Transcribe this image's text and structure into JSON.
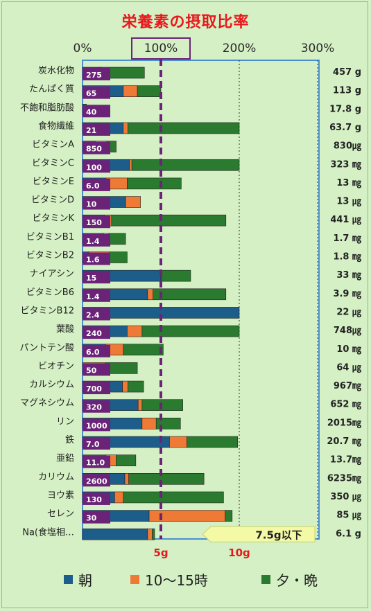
{
  "title": "栄養素の摂取比率",
  "colors": {
    "morning": "#1d5d8a",
    "midday": "#ee7a36",
    "evening": "#2a7a30",
    "required_box": "#6b2378",
    "highlight": "#6b2378",
    "axis_frame": "#4a90d0"
  },
  "legend": [
    {
      "name": "朝",
      "color": "#1d5d8a"
    },
    {
      "name": "10〜15時",
      "color": "#ee7a36"
    },
    {
      "name": "夕・晩",
      "color": "#2a7a30"
    }
  ],
  "chart_data": {
    "type": "bar",
    "stacked": true,
    "orientation": "horizontal",
    "title": "栄養素の摂取比率",
    "x_ticks": [
      "0%",
      "100%",
      "200%",
      "300%"
    ],
    "xlim": [
      0,
      300
    ],
    "highlighted_tick": "100%",
    "bottom_scale_labels": [
      "5g",
      "10g"
    ],
    "grid": true,
    "legend_position": "bottom",
    "series_names": [
      "朝",
      "10〜15時",
      "夕・晩"
    ],
    "rows": [
      {
        "name": "炭水化物",
        "required": "275",
        "intake": "457 g",
        "morning": 22,
        "midday": 1,
        "evening": 56
      },
      {
        "name": "たんぱく質",
        "required": "65",
        "intake": "113 g",
        "morning": 52,
        "midday": 18,
        "evening": 30
      },
      {
        "name": "不飽和脂肪酸",
        "required": "40",
        "intake": "17.8 g",
        "morning": 0,
        "midday": 0,
        "evening": 5
      },
      {
        "name": "食物繊維",
        "required": "21",
        "intake": "63.7 g",
        "morning": 52,
        "midday": 6,
        "evening": 142
      },
      {
        "name": "ビタミンA",
        "required": "850",
        "intake": "830㎍",
        "morning": 16,
        "midday": 15,
        "evening": 12
      },
      {
        "name": "ビタミンC",
        "required": "100",
        "intake": "323 ㎎",
        "morning": 60,
        "midday": 3,
        "evening": 137
      },
      {
        "name": "ビタミンE",
        "required": "6.0",
        "intake": "13 ㎎",
        "morning": 30,
        "midday": 27,
        "evening": 69
      },
      {
        "name": "ビタミンD",
        "required": "10",
        "intake": "13 ㎍",
        "morning": 55,
        "midday": 19,
        "evening": 0
      },
      {
        "name": "ビタミンK",
        "required": "150",
        "intake": "441 ㎍",
        "morning": 28,
        "midday": 9,
        "evening": 146
      },
      {
        "name": "ビタミンB1",
        "required": "1.4",
        "intake": "1.7 ㎎",
        "morning": 27,
        "midday": 6,
        "evening": 22
      },
      {
        "name": "ビタミンB2",
        "required": "1.6",
        "intake": "1.8 ㎎",
        "morning": 8,
        "midday": 27,
        "evening": 22
      },
      {
        "name": "ナイアシン",
        "required": "15",
        "intake": "33 ㎎",
        "morning": 100,
        "midday": 1,
        "evening": 37
      },
      {
        "name": "ビタミンB6",
        "required": "1.4",
        "intake": "3.9 ㎎",
        "morning": 83,
        "midday": 7,
        "evening": 93
      },
      {
        "name": "ビタミンB12",
        "required": "2.4",
        "intake": "22 ㎍",
        "morning": 200,
        "midday": 0,
        "evening": 0
      },
      {
        "name": "葉酸",
        "required": "240",
        "intake": "748㎍",
        "morning": 57,
        "midday": 19,
        "evening": 124
      },
      {
        "name": "パントテン酸",
        "required": "6.0",
        "intake": "10 ㎎",
        "morning": 30,
        "midday": 22,
        "evening": 51
      },
      {
        "name": "ビオチン",
        "required": "50",
        "intake": "64 ㎍",
        "morning": 0,
        "midday": 29,
        "evening": 41
      },
      {
        "name": "カルシウム",
        "required": "700",
        "intake": "967㎎",
        "morning": 51,
        "midday": 7,
        "evening": 20
      },
      {
        "name": "マグネシウム",
        "required": "320",
        "intake": "652 ㎎",
        "morning": 71,
        "midday": 5,
        "evening": 52
      },
      {
        "name": "リン",
        "required": "1000",
        "intake": "2015㎎",
        "morning": 76,
        "midday": 18,
        "evening": 31
      },
      {
        "name": "鉄",
        "required": "7.0",
        "intake": "20.7 ㎎",
        "morning": 111,
        "midday": 22,
        "evening": 65
      },
      {
        "name": "亜鉛",
        "required": "11.0",
        "intake": "13.7㎎",
        "morning": 30,
        "midday": 13,
        "evening": 25
      },
      {
        "name": "カリウム",
        "required": "2600",
        "intake": "6235㎎",
        "morning": 54,
        "midday": 5,
        "evening": 96
      },
      {
        "name": "ヨウ素",
        "required": "130",
        "intake": "350 ㎍",
        "morning": 41,
        "midday": 11,
        "evening": 128
      },
      {
        "name": "セレン",
        "required": "30",
        "intake": "85 ㎍",
        "morning": 85,
        "midday": 97,
        "evening": 9
      },
      {
        "name": "Na(食塩相…",
        "required": "",
        "intake": "6.1 g",
        "morning": 83,
        "midday": 6,
        "evening": 3
      }
    ],
    "annotations": [
      {
        "text": "7.5g以下"
      }
    ]
  }
}
